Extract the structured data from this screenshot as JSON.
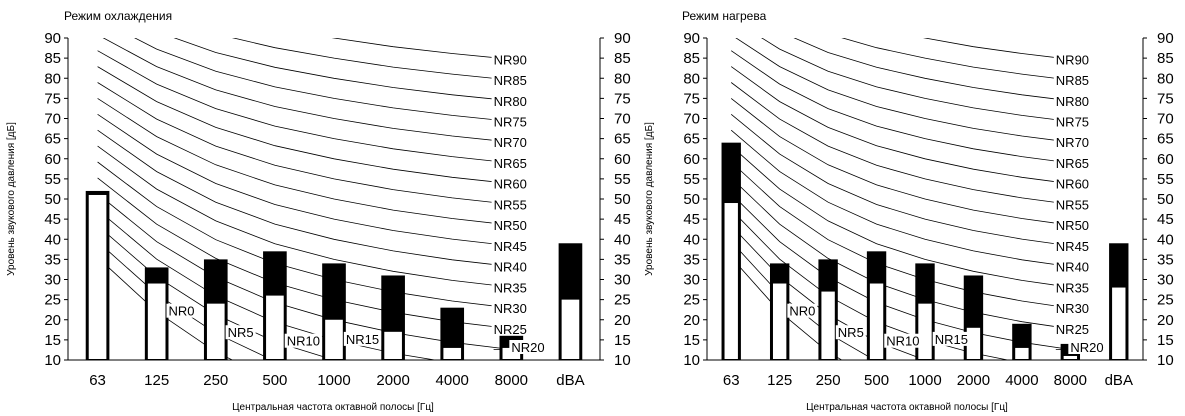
{
  "chart_data": [
    {
      "type": "bar",
      "title": "Режим охлаждения",
      "xlabel": "Центральная частота октавной полосы [Гц]",
      "ylabel": "Уровень звукового давления [дБ]",
      "ylim": [
        10,
        90
      ],
      "yticks": [
        10,
        15,
        20,
        25,
        30,
        35,
        40,
        45,
        50,
        55,
        60,
        65,
        70,
        75,
        80,
        85,
        90
      ],
      "categories": [
        "63",
        "125",
        "250",
        "500",
        "1000",
        "2000",
        "4000",
        "8000",
        "dBA"
      ],
      "series": [
        {
          "values": [
            52,
            33,
            35,
            37,
            34,
            31,
            23,
            17,
            39
          ]
        },
        {
          "values": [
            51,
            29,
            24,
            26,
            20,
            17,
            13,
            13,
            25
          ]
        }
      ],
      "nr_curves": [
        "NR0",
        "NR5",
        "NR10",
        "NR15",
        "NR20",
        "NR25",
        "NR30",
        "NR35",
        "NR40",
        "NR45",
        "NR50",
        "NR55",
        "NR60",
        "NR65",
        "NR70",
        "NR75",
        "NR80",
        "NR85",
        "NR90"
      ],
      "grid": false,
      "legend": "none"
    },
    {
      "type": "bar",
      "title": "Режим нагрева",
      "xlabel": "Центральная частота октавной полосы [Гц]",
      "ylabel": "Уровень звукового давления [дБ]",
      "ylim": [
        10,
        90
      ],
      "yticks": [
        10,
        15,
        20,
        25,
        30,
        35,
        40,
        45,
        50,
        55,
        60,
        65,
        70,
        75,
        80,
        85,
        90
      ],
      "categories": [
        "63",
        "125",
        "250",
        "500",
        "1000",
        "2000",
        "4000",
        "8000",
        "dBA"
      ],
      "series": [
        {
          "values": [
            64,
            34,
            35,
            37,
            34,
            31,
            19,
            14,
            39
          ]
        },
        {
          "values": [
            49,
            29,
            27,
            29,
            24,
            18,
            13,
            11,
            28
          ]
        }
      ],
      "nr_curves": [
        "NR0",
        "NR5",
        "NR10",
        "NR15",
        "NR20",
        "NR25",
        "NR30",
        "NR35",
        "NR40",
        "NR45",
        "NR50",
        "NR55",
        "NR60",
        "NR65",
        "NR70",
        "NR75",
        "NR80",
        "NR85",
        "NR90"
      ],
      "grid": false,
      "legend": "none"
    }
  ]
}
